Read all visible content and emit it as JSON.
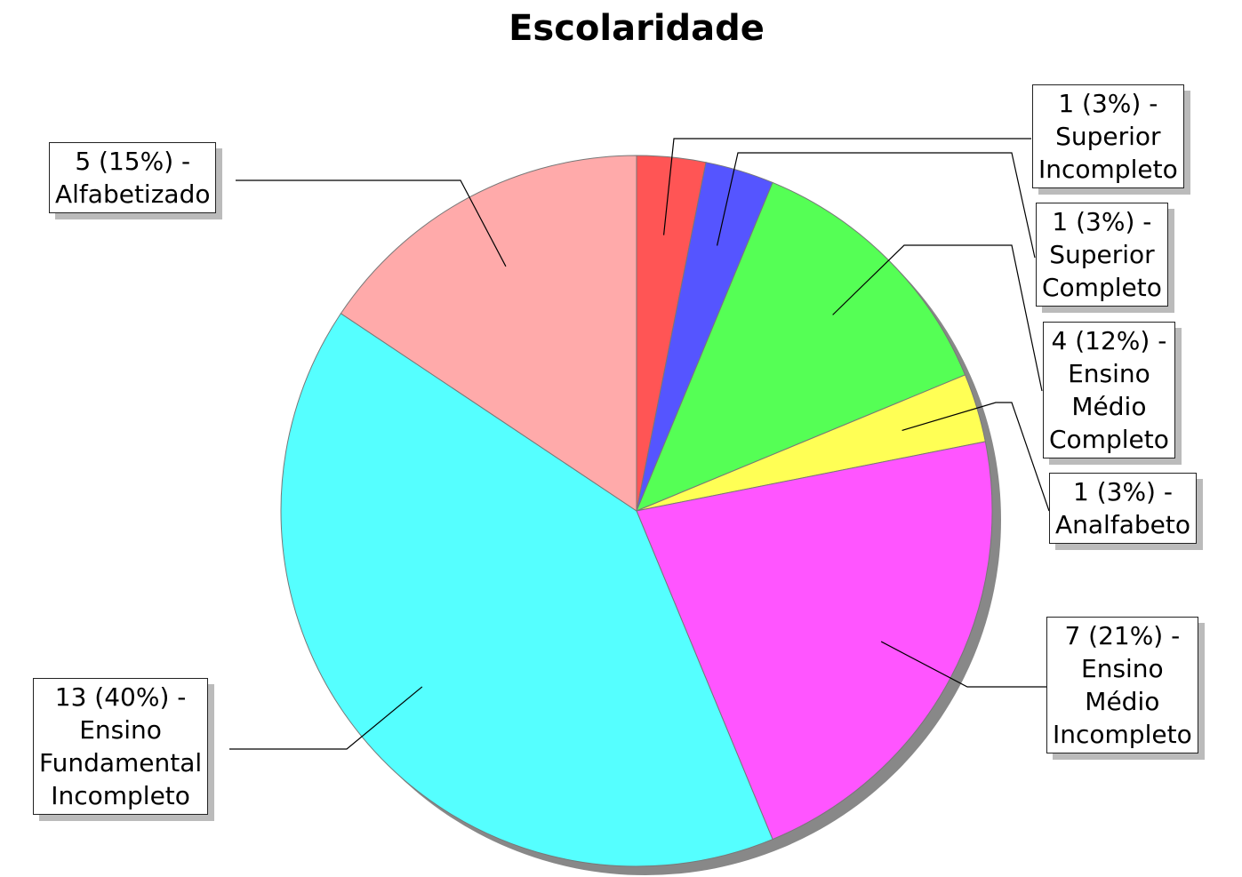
{
  "chart_data": {
    "type": "pie",
    "title": "Escolaridade",
    "categories": [
      "Superior Incompleto",
      "Superior Completo",
      "Ensino Médio Completo",
      "Analfabeto",
      "Ensino Médio Incompleto",
      "Ensino Fundamental Incompleto",
      "Alfabetizado"
    ],
    "values": [
      1,
      1,
      4,
      1,
      7,
      13,
      5
    ],
    "value_labels": [
      "1 (3%) -",
      "1 (3%) -",
      "4 (12%) -",
      "1 (3%) -",
      "7 (21%) -",
      "13 (40%) -",
      "5 (15%) -"
    ],
    "colors": [
      "#ff5555",
      "#5555ff",
      "#55ff55",
      "#ffff55",
      "#ff55ff",
      "#55ffff",
      "#ffaaaa"
    ]
  }
}
